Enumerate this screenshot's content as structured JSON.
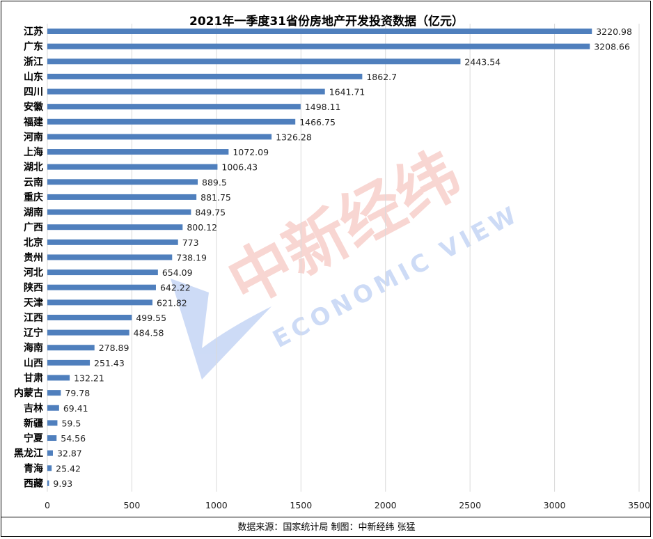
{
  "chart_data": {
    "type": "bar",
    "orientation": "horizontal",
    "title": "2021年一季度31省份房地产开发投资数据（亿元）",
    "categories": [
      "江苏",
      "广东",
      "浙江",
      "山东",
      "四川",
      "安徽",
      "福建",
      "河南",
      "上海",
      "湖北",
      "云南",
      "重庆",
      "湖南",
      "广西",
      "北京",
      "贵州",
      "河北",
      "陕西",
      "天津",
      "江西",
      "辽宁",
      "海南",
      "山西",
      "甘肃",
      "内蒙古",
      "吉林",
      "新疆",
      "宁夏",
      "黑龙江",
      "青海",
      "西藏"
    ],
    "values": [
      3220.98,
      3208.66,
      2443.54,
      1862.7,
      1641.71,
      1498.11,
      1466.75,
      1326.28,
      1072.09,
      1006.43,
      889.5,
      881.75,
      849.75,
      800.12,
      773,
      738.19,
      654.09,
      642.22,
      621.82,
      499.55,
      484.58,
      278.89,
      251.43,
      132.21,
      79.78,
      69.41,
      59.5,
      54.56,
      32.87,
      25.42,
      9.93
    ],
    "value_labels": [
      "3220.98",
      "3208.66",
      "2443.54",
      "1862.7",
      "1641.71",
      "1498.11",
      "1466.75",
      "1326.28",
      "1072.09",
      "1006.43",
      "889.5",
      "881.75",
      "849.75",
      "800.12",
      "773",
      "738.19",
      "654.09",
      "642.22",
      "621.82",
      "499.55",
      "484.58",
      "278.89",
      "251.43",
      "132.21",
      "79.78",
      "69.41",
      "59.5",
      "54.56",
      "32.87",
      "25.42",
      "9.93"
    ],
    "xlim": [
      0,
      3500
    ],
    "xticks": [
      "0",
      "500",
      "1000",
      "1500",
      "2000",
      "2500",
      "3000",
      "3500"
    ],
    "xlabel": "",
    "ylabel": "",
    "grid": "vertical",
    "bar_color": "#4f7fbd",
    "grid_color": "#d9d9d9"
  },
  "footer": "数据来源：国家统计局  制图：中新经纬 张猛",
  "watermark": {
    "cn": "中新经纬",
    "en": "ECONOMIC VIEW"
  }
}
